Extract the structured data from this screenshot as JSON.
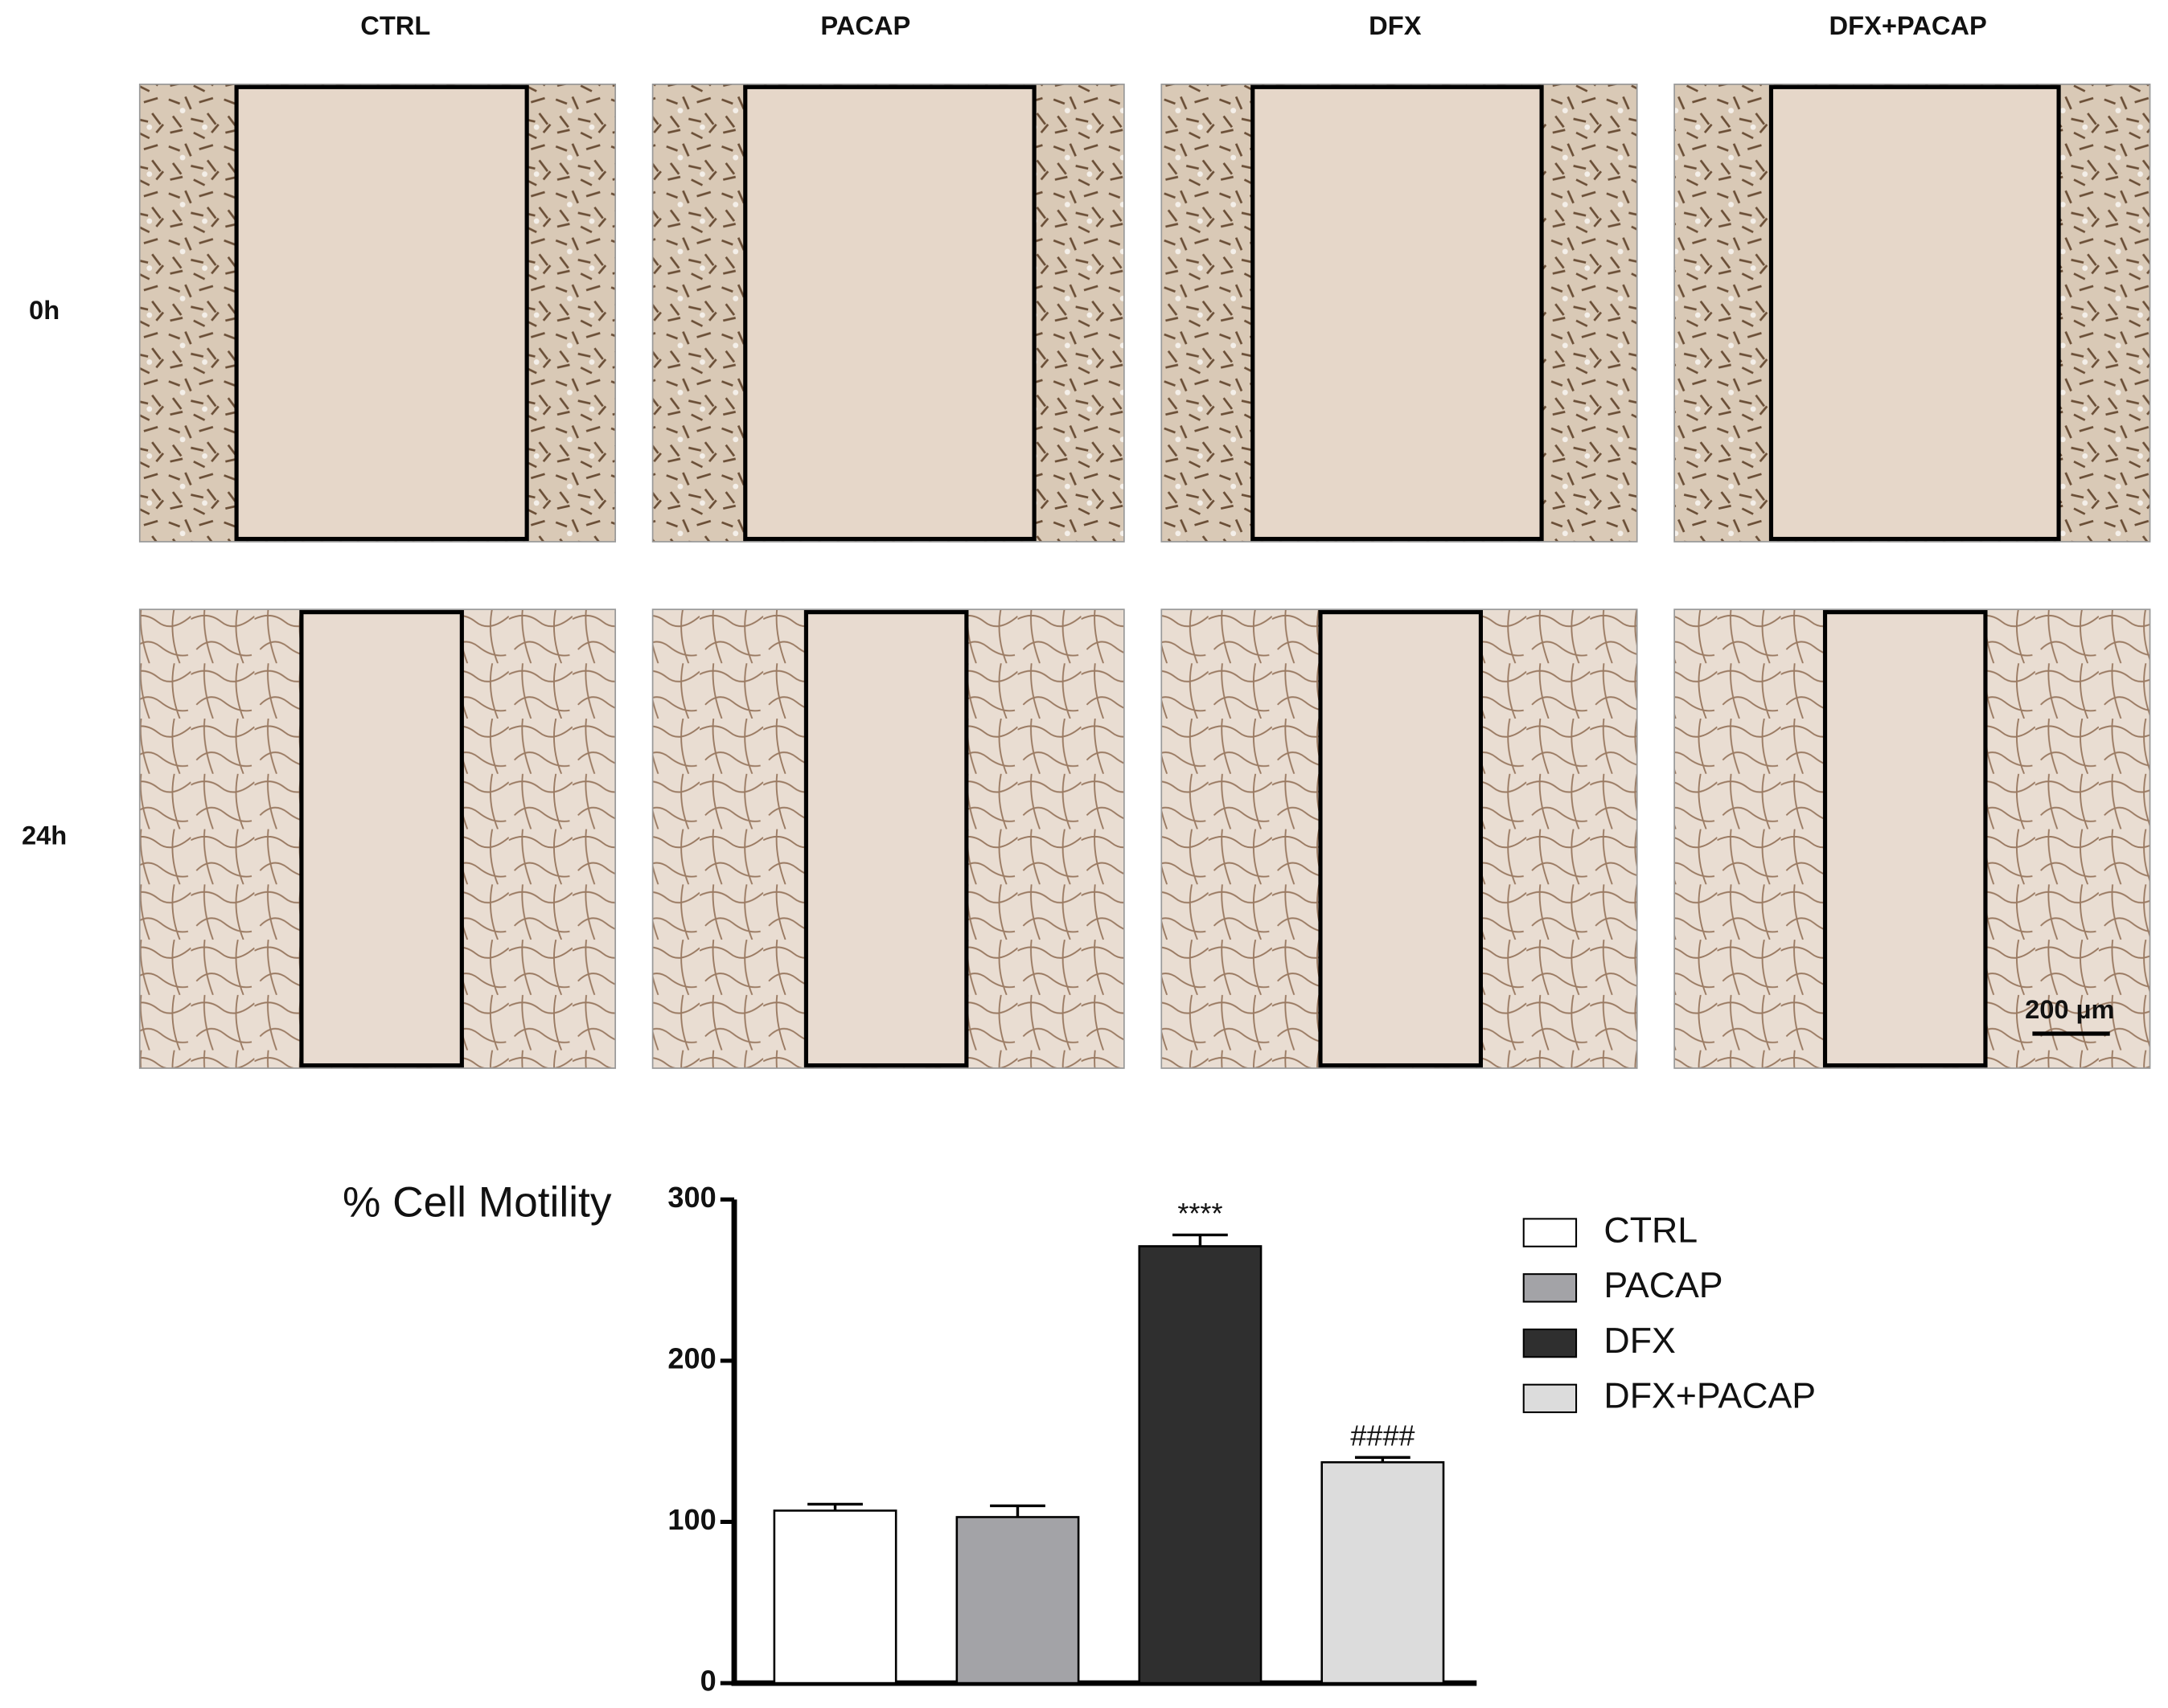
{
  "panels": {
    "columns": [
      "CTRL",
      "PACAP",
      "DFX",
      "DFX+PACAP"
    ],
    "rows": [
      "0h",
      "24h"
    ],
    "scale_bar": "200 µm"
  },
  "chart_data": {
    "type": "bar",
    "title": "% Cell Motility",
    "categories": [
      "CTRL",
      "PACAP",
      "DFX",
      "DFX+PACAP"
    ],
    "values": [
      107,
      103,
      271,
      137
    ],
    "errors": [
      4,
      7,
      7,
      3
    ],
    "colors": [
      "#ffffff",
      "#a3a3a7",
      "#2f2f2f",
      "#dcdcdc"
    ],
    "significance": [
      null,
      null,
      "****",
      "####"
    ],
    "ylim": [
      0,
      300
    ],
    "yticks": [
      0,
      100,
      200,
      300
    ],
    "grid": false,
    "legend": "right"
  }
}
